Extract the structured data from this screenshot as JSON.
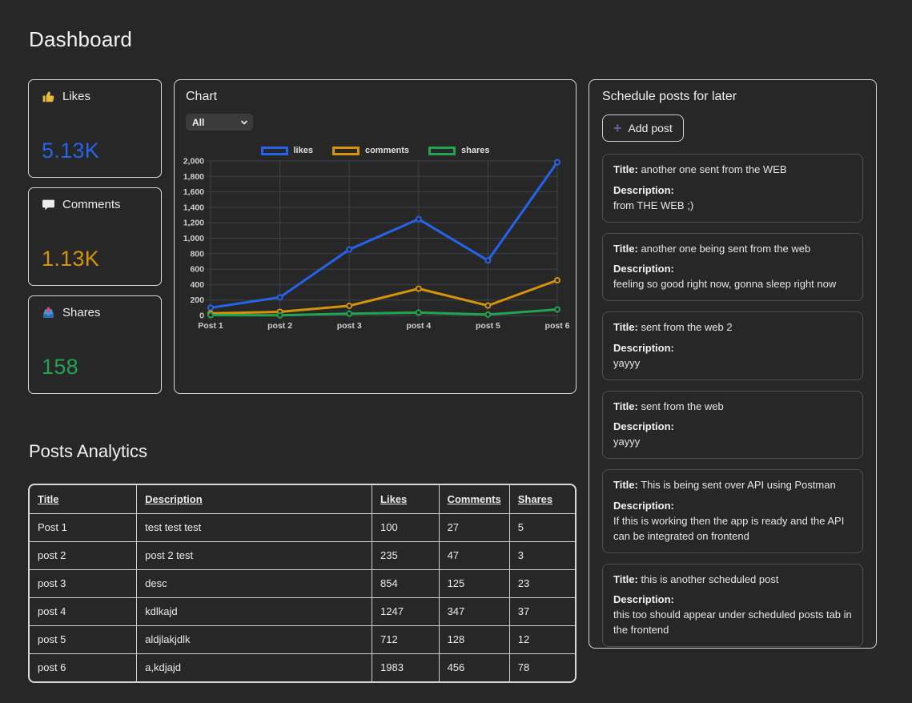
{
  "page": {
    "title": "Dashboard"
  },
  "stats": [
    {
      "id": "likes",
      "icon_name": "thumbs-up-icon",
      "label": "Likes",
      "value": "5.13K",
      "color": "#2563eb"
    },
    {
      "id": "comments",
      "icon_name": "speech-balloon-icon",
      "label": "Comments",
      "value": "1.13K",
      "color": "#d6940a"
    },
    {
      "id": "shares",
      "icon_name": "outbox-tray-icon",
      "label": "Shares",
      "value": "158",
      "color": "#21a351"
    }
  ],
  "chart_panel": {
    "title": "Chart",
    "filter_value": "All"
  },
  "chart_data": {
    "type": "line",
    "categories": [
      "Post 1",
      "post 2",
      "post 3",
      "post 4",
      "post 5",
      "post 6"
    ],
    "series": [
      {
        "name": "likes",
        "color": "#2563eb",
        "values": [
          100,
          235,
          854,
          1247,
          712,
          1983
        ]
      },
      {
        "name": "comments",
        "color": "#d6940a",
        "values": [
          27,
          47,
          125,
          347,
          128,
          456
        ]
      },
      {
        "name": "shares",
        "color": "#21a351",
        "values": [
          5,
          3,
          23,
          37,
          12,
          78
        ]
      }
    ],
    "ylim": [
      0,
      2000
    ],
    "ytick_step": 200,
    "grid": true,
    "legend_position": "top",
    "grid_color": "#3d4248"
  },
  "schedule": {
    "title": "Schedule posts for later",
    "add_button_icon": "+",
    "add_button_label": "Add post",
    "title_label": "Title:",
    "description_label": "Description:",
    "posts": [
      {
        "title": "another one sent from the WEB",
        "description": "from THE WEB ;)"
      },
      {
        "title": "another one being sent from the web",
        "description": "feeling so good right now, gonna sleep right now"
      },
      {
        "title": "sent from the web 2",
        "description": "yayyy"
      },
      {
        "title": "sent from the web",
        "description": "yayyy"
      },
      {
        "title": "This is being sent over API using Postman",
        "description": "If this is working then the app is ready and the API can be integrated on frontend"
      },
      {
        "title": "this is another scheduled post",
        "description": "this too should appear under scheduled posts tab in the frontend"
      }
    ]
  },
  "analytics": {
    "title": "Posts Analytics",
    "columns": [
      "Title",
      "Description",
      "Likes",
      "Comments",
      "Shares"
    ],
    "rows": [
      [
        "Post 1",
        "test test test",
        "100",
        "27",
        "5"
      ],
      [
        "post 2",
        "post 2 test",
        "235",
        "47",
        "3"
      ],
      [
        "post 3",
        "desc",
        "854",
        "125",
        "23"
      ],
      [
        "post 4",
        "kdlkajd",
        "1247",
        "347",
        "37"
      ],
      [
        "post 5",
        "aldjlakjdlk",
        "712",
        "128",
        "12"
      ],
      [
        "post 6",
        "a,kdjajd",
        "1983",
        "456",
        "78"
      ]
    ]
  }
}
